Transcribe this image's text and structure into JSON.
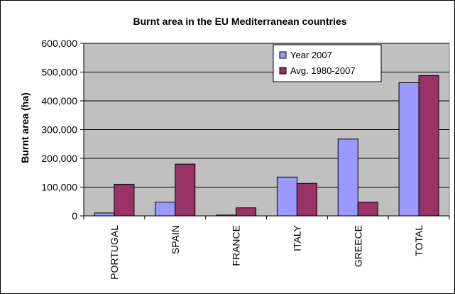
{
  "chart_data": {
    "type": "bar",
    "title": "Burnt area in the EU Mediterranean countries",
    "xlabel": "",
    "ylabel": "Burnt area (ha)",
    "categories": [
      "PORTUGAL",
      "SPAIN",
      "FRANCE",
      "ITALY",
      "GREECE",
      "TOTAL"
    ],
    "series": [
      {
        "name": "Year 2007",
        "values": [
          10000,
          48000,
          3000,
          135000,
          267000,
          463000
        ]
      },
      {
        "name": "Avg. 1980-2007",
        "values": [
          110000,
          180000,
          28000,
          113000,
          48000,
          488000
        ]
      }
    ],
    "ylim": [
      0,
      600000
    ],
    "yticks": [
      "0",
      "100,000",
      "200,000",
      "300,000",
      "400,000",
      "500,000",
      "600,000"
    ],
    "grid": true,
    "legend": "top-right"
  },
  "colors": {
    "plot_bg": "#c0c0c0",
    "series": [
      "#9999ff",
      "#993366"
    ]
  }
}
